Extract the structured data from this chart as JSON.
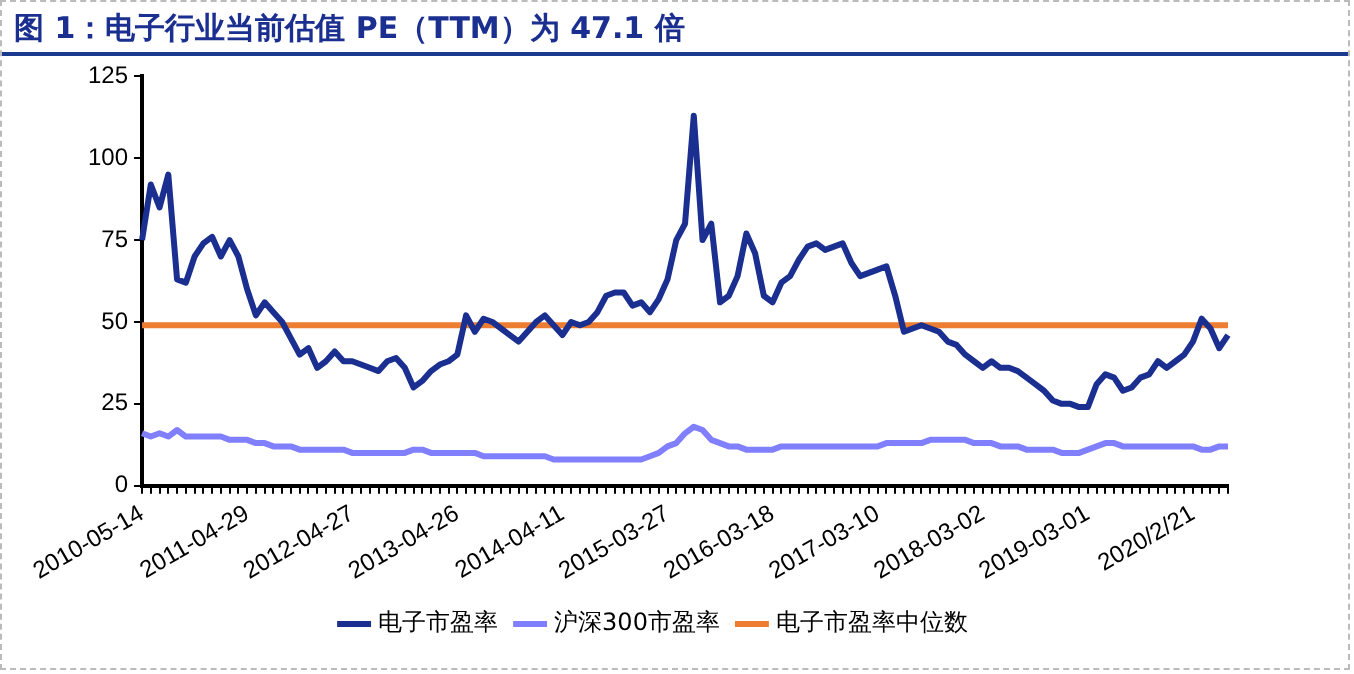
{
  "chart_data": {
    "type": "line",
    "title": "图 1：电子行业当前估值 PE（TTM）为 47.1 倍",
    "categories": [
      "2010-05-14",
      null,
      null,
      null,
      null,
      null,
      null,
      null,
      null,
      null,
      null,
      null,
      "2011-04-29",
      null,
      null,
      null,
      null,
      null,
      null,
      null,
      null,
      null,
      null,
      null,
      "2012-04-27",
      null,
      null,
      null,
      null,
      null,
      null,
      null,
      null,
      null,
      null,
      null,
      "2013-04-26",
      null,
      null,
      null,
      null,
      null,
      null,
      null,
      null,
      null,
      null,
      null,
      "2014-04-11",
      null,
      null,
      null,
      null,
      null,
      null,
      null,
      null,
      null,
      null,
      null,
      "2015-03-27",
      null,
      null,
      null,
      null,
      null,
      null,
      null,
      null,
      null,
      null,
      null,
      "2016-03-18",
      null,
      null,
      null,
      null,
      null,
      null,
      null,
      null,
      null,
      null,
      null,
      "2017-03-10",
      null,
      null,
      null,
      null,
      null,
      null,
      null,
      null,
      null,
      null,
      null,
      "2018-03-02",
      null,
      null,
      null,
      null,
      null,
      null,
      null,
      null,
      null,
      null,
      null,
      "2019-03-01",
      null,
      null,
      null,
      null,
      null,
      null,
      null,
      null,
      null,
      null,
      null,
      "2020/2/21",
      null,
      null,
      null,
      null
    ],
    "series": [
      {
        "name": "电子市盈率",
        "color": "#1a2f8f",
        "values": [
          75,
          92,
          85,
          95,
          63,
          62,
          70,
          74,
          76,
          70,
          75,
          70,
          60,
          52,
          56,
          53,
          50,
          45,
          40,
          42,
          36,
          38,
          41,
          38,
          38,
          37,
          36,
          35,
          38,
          39,
          36,
          30,
          32,
          35,
          37,
          38,
          40,
          52,
          47,
          51,
          50,
          48,
          46,
          44,
          47,
          50,
          52,
          49,
          46,
          50,
          49,
          50,
          53,
          58,
          59,
          59,
          55,
          56,
          53,
          57,
          63,
          75,
          80,
          113,
          75,
          80,
          56,
          58,
          64,
          77,
          71,
          58,
          56,
          62,
          64,
          69,
          73,
          74,
          72,
          73,
          74,
          68,
          64,
          65,
          66,
          67,
          58,
          47,
          48,
          49,
          48,
          47,
          44,
          43,
          40,
          38,
          36,
          38,
          36,
          36,
          35,
          33,
          31,
          29,
          26,
          25,
          25,
          24,
          24,
          31,
          34,
          33,
          29,
          30,
          33,
          34,
          38,
          36,
          38,
          40,
          44,
          51,
          48,
          42,
          46
        ]
      },
      {
        "name": "沪深300市盈率",
        "color": "#8080ff",
        "values": [
          16,
          15,
          16,
          15,
          17,
          15,
          15,
          15,
          15,
          15,
          14,
          14,
          14,
          13,
          13,
          12,
          12,
          12,
          11,
          11,
          11,
          11,
          11,
          11,
          10,
          10,
          10,
          10,
          10,
          10,
          10,
          11,
          11,
          10,
          10,
          10,
          10,
          10,
          10,
          9,
          9,
          9,
          9,
          9,
          9,
          9,
          9,
          8,
          8,
          8,
          8,
          8,
          8,
          8,
          8,
          8,
          8,
          8,
          9,
          10,
          12,
          13,
          16,
          18,
          17,
          14,
          13,
          12,
          12,
          11,
          11,
          11,
          11,
          12,
          12,
          12,
          12,
          12,
          12,
          12,
          12,
          12,
          12,
          12,
          12,
          13,
          13,
          13,
          13,
          13,
          14,
          14,
          14,
          14,
          14,
          13,
          13,
          13,
          12,
          12,
          12,
          11,
          11,
          11,
          11,
          10,
          10,
          10,
          11,
          12,
          13,
          13,
          12,
          12,
          12,
          12,
          12,
          12,
          12,
          12,
          12,
          11,
          11,
          12,
          12
        ]
      },
      {
        "name": "电子市盈率中位数",
        "color": "#ed7d31",
        "values": [
          49,
          49,
          49,
          49,
          49,
          49,
          49,
          49,
          49,
          49,
          49,
          49,
          49,
          49,
          49,
          49,
          49,
          49,
          49,
          49,
          49,
          49,
          49,
          49,
          49,
          49,
          49,
          49,
          49,
          49,
          49,
          49,
          49,
          49,
          49,
          49,
          49,
          49,
          49,
          49,
          49,
          49,
          49,
          49,
          49,
          49,
          49,
          49,
          49,
          49,
          49,
          49,
          49,
          49,
          49,
          49,
          49,
          49,
          49,
          49,
          49,
          49,
          49,
          49,
          49,
          49,
          49,
          49,
          49,
          49,
          49,
          49,
          49,
          49,
          49,
          49,
          49,
          49,
          49,
          49,
          49,
          49,
          49,
          49,
          49,
          49,
          49,
          49,
          49,
          49,
          49,
          49,
          49,
          49,
          49,
          49,
          49,
          49,
          49,
          49,
          49,
          49,
          49,
          49,
          49,
          49,
          49,
          49,
          49,
          49,
          49,
          49,
          49,
          49,
          49,
          49,
          49,
          49,
          49,
          49,
          49,
          49,
          49,
          49,
          49
        ]
      }
    ],
    "ylim": [
      0,
      125
    ],
    "yticks": [
      0,
      25,
      50,
      75,
      100,
      125
    ],
    "grid": false,
    "legend": "bottom",
    "marker": "none"
  }
}
